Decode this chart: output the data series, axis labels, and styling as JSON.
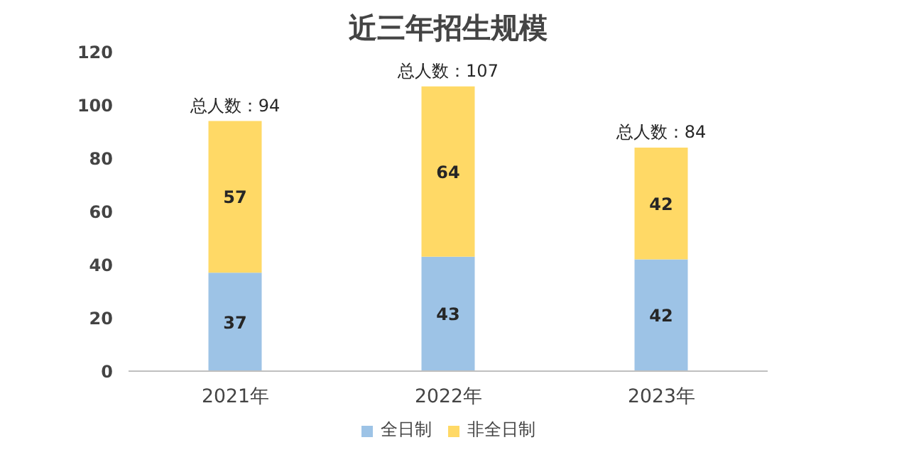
{
  "chart_data": {
    "type": "bar",
    "title": "近三年招生规模",
    "categories": [
      "2021年",
      "2022年",
      "2023年"
    ],
    "stacked": true,
    "series": [
      {
        "name": "全日制",
        "color": "#9dc3e6",
        "values": [
          37,
          43,
          42
        ]
      },
      {
        "name": "非全日制",
        "color": "#ffd966",
        "values": [
          57,
          64,
          42
        ]
      }
    ],
    "ylim": [
      0,
      120
    ],
    "yticks": [
      0,
      20,
      40,
      60,
      80,
      100,
      120
    ],
    "grid": false,
    "legend": "bottom",
    "data_labels": true,
    "totals": [
      "总人数：94",
      "总人数：107",
      "总人数：84"
    ]
  }
}
